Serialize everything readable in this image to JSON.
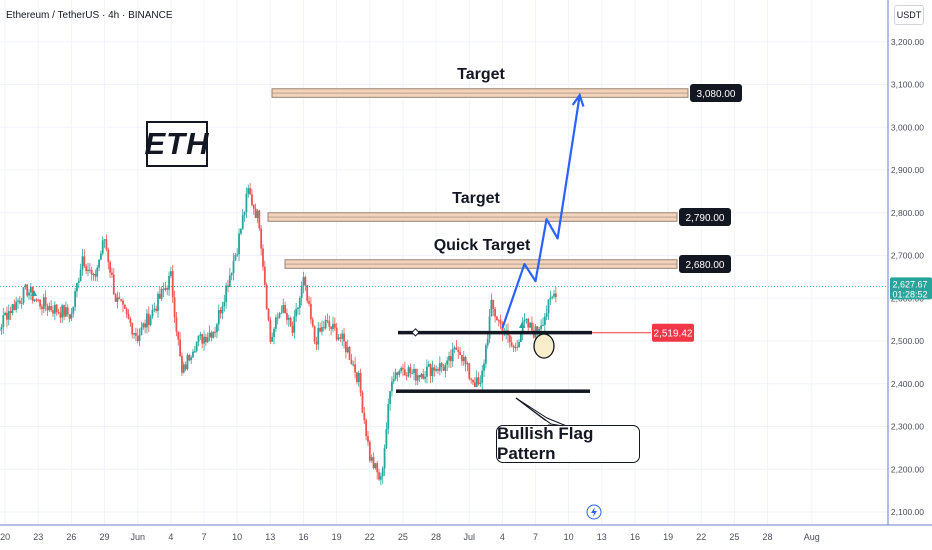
{
  "header": {
    "symbol_title": "Ethereum / TetherUS · 4h · BINANCE",
    "currency": "USDT",
    "logo_text": "ETH"
  },
  "annotations": {
    "callout": "Bullish Flag Pattern",
    "labels": [
      "Target",
      "Target",
      "Quick Target"
    ]
  },
  "colors": {
    "up": "#26a69a",
    "down": "#ef5350",
    "zone_fill": "#f0cdb0",
    "zone_border": "#9b8070",
    "projection": "#2962ff",
    "current_price_bg": "#26a69a",
    "alert_bg": "#f23645",
    "grid": "#f0f3fa",
    "axis_border": "#6a7cd0"
  },
  "icons": [
    "lightning-icon",
    "triangle-marker-icon",
    "diamond-handle-icon"
  ],
  "chart_data": {
    "type": "candlestick",
    "title": "",
    "xlabel": "",
    "ylabel": "",
    "ylim": [
      2080,
      3260
    ],
    "grid": true,
    "y_ticks": [
      "3,200.00",
      "3,100.00",
      "3,000.00",
      "2,900.00",
      "2,800.00",
      "2,700.00",
      "2,600.00",
      "2,500.00",
      "2,400.00",
      "2,300.00",
      "2,200.00",
      "2,100.00"
    ],
    "x_ticks": [
      "20",
      "23",
      "26",
      "29",
      "Jun",
      "4",
      "7",
      "10",
      "13",
      "16",
      "19",
      "22",
      "25",
      "28",
      "Jul",
      "4",
      "7",
      "10",
      "13",
      "16",
      "19",
      "22",
      "25",
      "28",
      "Aug"
    ],
    "price_labels": [
      {
        "text": "3,080.00",
        "value": 3080
      },
      {
        "text": "2,790.00",
        "value": 2790
      },
      {
        "text": "2,680.00",
        "value": 2680
      }
    ],
    "current_price": {
      "price": "2,627.67",
      "countdown": "01:28:52",
      "value": 2627.67
    },
    "alert": {
      "text": "2,519.42",
      "value": 2519.42
    },
    "zones": [
      {
        "label": "Target",
        "low": 3070,
        "high": 3090
      },
      {
        "label": "Target",
        "low": 2780,
        "high": 2800
      },
      {
        "label": "Quick Target",
        "low": 2670,
        "high": 2690
      }
    ],
    "levels": [
      {
        "name": "flag-top",
        "value": 2519
      },
      {
        "name": "flag-bottom",
        "value": 2382
      }
    ],
    "projection": [
      {
        "date": "Jul 4",
        "value": 2530
      },
      {
        "date": "Jul 6",
        "value": 2680
      },
      {
        "date": "Jul 7",
        "value": 2640
      },
      {
        "date": "Jul 8",
        "value": 2785
      },
      {
        "date": "Jul 9",
        "value": 2740
      },
      {
        "date": "Jul 11",
        "value": 3075
      }
    ],
    "price_path": [
      {
        "date": "May 18",
        "value": 2440
      },
      {
        "date": "May 20",
        "value": 2560
      },
      {
        "date": "May 22",
        "value": 2620
      },
      {
        "date": "May 23",
        "value": 2590
      },
      {
        "date": "May 26",
        "value": 2560
      },
      {
        "date": "May 27",
        "value": 2700
      },
      {
        "date": "May 28",
        "value": 2640
      },
      {
        "date": "May 29",
        "value": 2740
      },
      {
        "date": "May 30",
        "value": 2600
      },
      {
        "date": "Jun 1",
        "value": 2510
      },
      {
        "date": "Jun 3",
        "value": 2600
      },
      {
        "date": "Jun 4",
        "value": 2650
      },
      {
        "date": "Jun 5",
        "value": 2420
      },
      {
        "date": "Jun 6",
        "value": 2490
      },
      {
        "date": "Jun 8",
        "value": 2530
      },
      {
        "date": "Jun 10",
        "value": 2720
      },
      {
        "date": "Jun 11",
        "value": 2850
      },
      {
        "date": "Jun 12",
        "value": 2780
      },
      {
        "date": "Jun 13",
        "value": 2500
      },
      {
        "date": "Jun 14",
        "value": 2580
      },
      {
        "date": "Jun 15",
        "value": 2520
      },
      {
        "date": "Jun 16",
        "value": 2640
      },
      {
        "date": "Jun 17",
        "value": 2500
      },
      {
        "date": "Jun 18",
        "value": 2540
      },
      {
        "date": "Jun 19",
        "value": 2520
      },
      {
        "date": "Jun 20",
        "value": 2480
      },
      {
        "date": "Jun 21",
        "value": 2410
      },
      {
        "date": "Jun 22",
        "value": 2230
      },
      {
        "date": "Jun 23",
        "value": 2170
      },
      {
        "date": "Jun 24",
        "value": 2420
      },
      {
        "date": "Jun 25",
        "value": 2440
      },
      {
        "date": "Jun 26",
        "value": 2420
      },
      {
        "date": "Jun 27",
        "value": 2430
      },
      {
        "date": "Jun 28",
        "value": 2440
      },
      {
        "date": "Jun 29",
        "value": 2440
      },
      {
        "date": "Jun 30",
        "value": 2490
      },
      {
        "date": "Jul 1",
        "value": 2420
      },
      {
        "date": "Jul 2",
        "value": 2390
      },
      {
        "date": "Jul 3",
        "value": 2580
      },
      {
        "date": "Jul 4",
        "value": 2530
      },
      {
        "date": "Jul 5",
        "value": 2480
      },
      {
        "date": "Jul 6",
        "value": 2540
      },
      {
        "date": "Jul 7",
        "value": 2520
      },
      {
        "date": "Jul 8",
        "value": 2570
      },
      {
        "date": "Jul 9",
        "value": 2628
      }
    ]
  }
}
